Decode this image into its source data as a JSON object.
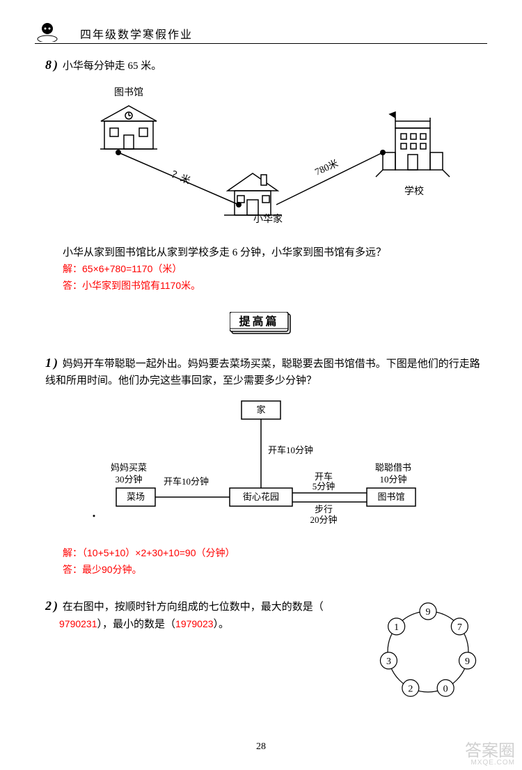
{
  "header": {
    "title": "四年级数学寒假作业"
  },
  "problem8": {
    "number": "8",
    "paren": ")",
    "intro": "小华每分钟走 65 米。",
    "diagram": {
      "library_label": "图书馆",
      "school_label": "学校",
      "home_label": "小华家",
      "left_dist": "？米",
      "right_dist": "780米",
      "line_color": "#000000",
      "font_size": 14
    },
    "question": "小华从家到图书馆比从家到学校多走 6 分钟，小华家到图书馆有多远？",
    "answer1": "解：65×6+780=1170（米）",
    "answer2": "答：小华家到图书馆有1170米。"
  },
  "section": {
    "title": "提高篇"
  },
  "problem1": {
    "number": "1",
    "paren": ")",
    "text": "妈妈开车带聪聪一起外出。妈妈要去菜场买菜，聪聪要去图书馆借书。下图是他们的行走路线和所用时间。他们办完这些事回家，至少需要多少分钟？",
    "diagram": {
      "home": "家",
      "market": "菜场",
      "garden": "街心花园",
      "library": "图书馆",
      "mom_shop": "妈妈买菜",
      "mom_time": "30分钟",
      "cong_borrow": "聪聪借书",
      "cong_time": "10分钟",
      "drive_home": "开车10分钟",
      "drive_market": "开车10分钟",
      "drive_lib": "开车",
      "drive_lib_time": "5分钟",
      "walk": "步行",
      "walk_time": "20分钟",
      "box_border": "#000000",
      "font_size": 13
    },
    "answer1": "解：（10+5+10）×2+30+10=90（分钟）",
    "answer2": "答：最少90分钟。"
  },
  "problem2": {
    "number": "2",
    "paren": ")",
    "text_before": "在右图中，按顺时针方向组成的七位数中，最大的数是（",
    "blank1": "9790231",
    "mid": "），最小的数是（",
    "blank2": "1979023",
    "text_after": "）。",
    "circle": {
      "digits": [
        "9",
        "7",
        "9",
        "0",
        "2",
        "3",
        "1"
      ],
      "radius": 58,
      "node_radius": 12,
      "font_size": 14,
      "stroke": "#000000"
    }
  },
  "page_number": "28",
  "watermark": {
    "main": "答案圈",
    "sub": "MXQE.COM"
  },
  "colors": {
    "text": "#000000",
    "answer": "#ff0000",
    "bg": "#ffffff"
  }
}
